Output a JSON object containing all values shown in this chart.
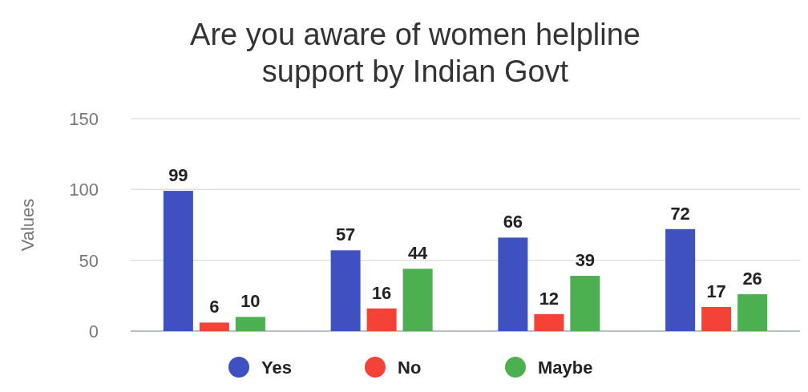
{
  "chart_data": {
    "type": "bar",
    "title": "Are you aware of women helpline\nsupport by Indian Govt",
    "ylabel": "Values",
    "categories": [
      null,
      null,
      null,
      null
    ],
    "series": [
      {
        "name": "Yes",
        "color": "#3f51c0",
        "values": [
          99,
          57,
          66,
          72
        ]
      },
      {
        "name": "No",
        "color": "#f44336",
        "values": [
          6,
          16,
          12,
          17
        ]
      },
      {
        "name": "Maybe",
        "color": "#4caf50",
        "values": [
          10,
          44,
          39,
          26
        ]
      }
    ],
    "ylim": [
      0,
      150
    ],
    "yticks": [
      0,
      50,
      100,
      150
    ],
    "grid": "y",
    "legend": "bottom",
    "data_labels": true
  }
}
